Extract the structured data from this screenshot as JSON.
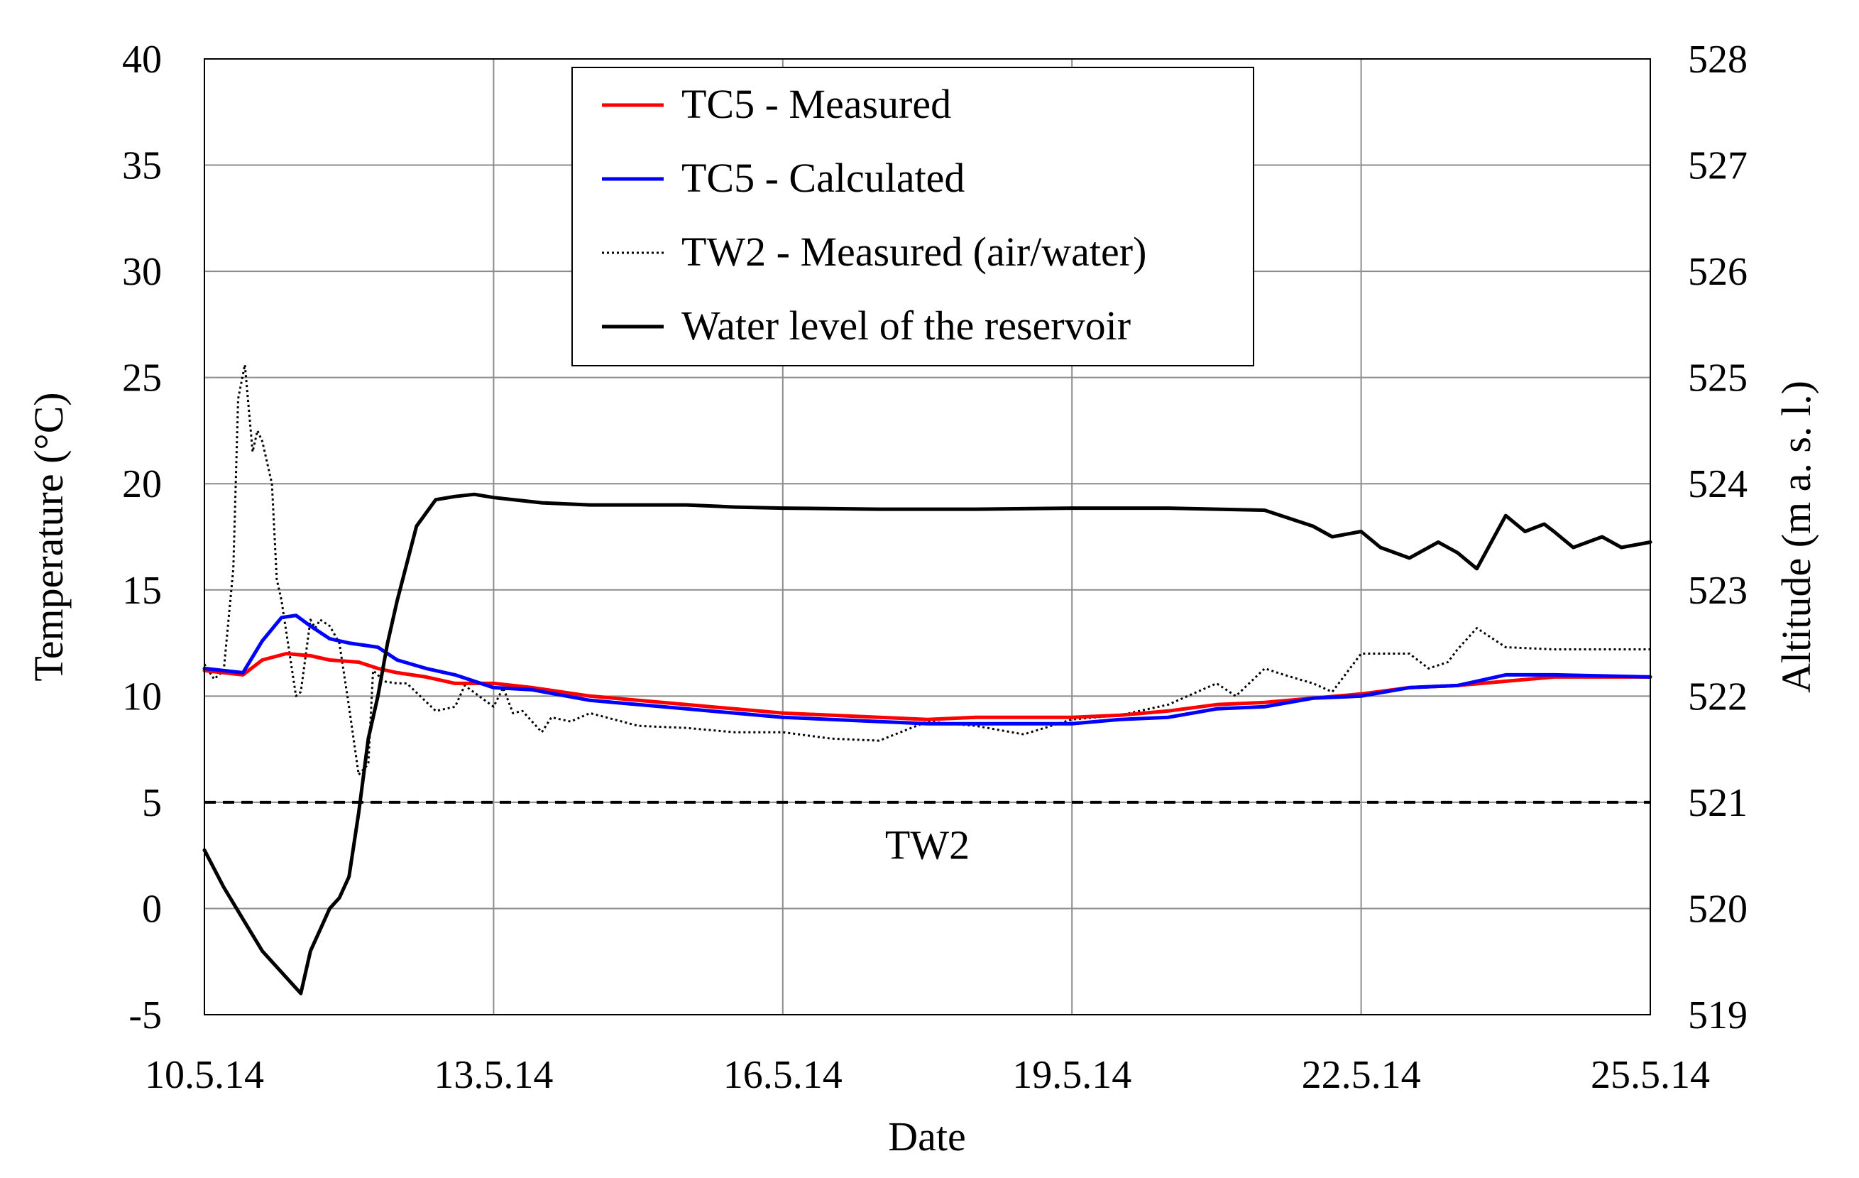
{
  "chart_data": {
    "type": "line",
    "xlabel": "Date",
    "ylabel_left": "Temperature  (°C)",
    "ylabel_right": "Altitude  (m a. s. l.)",
    "x_ticks": [
      "10.5.14",
      "13.5.14",
      "16.5.14",
      "19.5.14",
      "22.5.14",
      "25.5.14"
    ],
    "xlim_days": [
      0,
      15
    ],
    "ylim_left": [
      -5,
      40
    ],
    "y_ticks_left": [
      "-5",
      "0",
      "5",
      "10",
      "15",
      "20",
      "25",
      "30",
      "35",
      "40"
    ],
    "ylim_right": [
      519,
      528
    ],
    "y_ticks_right": [
      "519",
      "520",
      "521",
      "522",
      "523",
      "524",
      "525",
      "526",
      "527",
      "528"
    ],
    "grid": true,
    "legend_position": "top-center",
    "annotations": [
      {
        "text": "TW2",
        "x_day": 7.5,
        "y": 3
      }
    ],
    "reference_line": {
      "name": "TW2 level",
      "y": 5,
      "axis": "left",
      "style": "dashed"
    },
    "series": [
      {
        "name": "TC5 - Measured",
        "axis": "left",
        "color": "#ff0000",
        "style": "solid",
        "x": [
          0,
          0.2,
          0.4,
          0.6,
          0.85,
          1.1,
          1.3,
          1.6,
          1.8,
          2.0,
          2.3,
          2.6,
          3.0,
          3.4,
          4.0,
          4.5,
          5.0,
          5.5,
          6.0,
          7.0,
          7.5,
          8.0,
          8.5,
          9.0,
          9.5,
          10.0,
          10.5,
          11.0,
          11.5,
          12.0,
          12.5,
          13.0,
          14.0,
          15.0
        ],
        "values": [
          11.2,
          11.1,
          11.0,
          11.7,
          12.0,
          11.9,
          11.7,
          11.6,
          11.3,
          11.1,
          10.9,
          10.6,
          10.6,
          10.4,
          10.0,
          9.8,
          9.6,
          9.4,
          9.2,
          9.0,
          8.9,
          9.0,
          9.0,
          9.0,
          9.1,
          9.3,
          9.6,
          9.7,
          9.9,
          10.1,
          10.4,
          10.5,
          10.9,
          10.9
        ]
      },
      {
        "name": "TC5 - Calculated",
        "axis": "left",
        "color": "#0000ff",
        "style": "solid",
        "x": [
          0,
          0.2,
          0.4,
          0.6,
          0.8,
          0.95,
          1.1,
          1.3,
          1.5,
          1.8,
          2.0,
          2.3,
          2.6,
          3.0,
          3.4,
          4.0,
          4.5,
          5.0,
          5.5,
          6.0,
          6.5,
          7.0,
          7.5,
          8.0,
          8.5,
          9.0,
          9.5,
          10.0,
          10.5,
          11.0,
          11.5,
          12.0,
          12.5,
          13.0,
          13.5,
          14.0,
          15.0
        ],
        "values": [
          11.3,
          11.2,
          11.1,
          12.6,
          13.7,
          13.8,
          13.3,
          12.7,
          12.5,
          12.3,
          11.7,
          11.3,
          11.0,
          10.4,
          10.3,
          9.8,
          9.6,
          9.4,
          9.2,
          9.0,
          8.9,
          8.8,
          8.7,
          8.7,
          8.7,
          8.7,
          8.9,
          9.0,
          9.4,
          9.5,
          9.9,
          10.0,
          10.4,
          10.5,
          11.0,
          11.0,
          10.9
        ]
      },
      {
        "name": "TW2 - Measured (air/water)",
        "axis": "left",
        "color": "#000000",
        "style": "dotted",
        "x": [
          0,
          0.1,
          0.2,
          0.3,
          0.35,
          0.42,
          0.5,
          0.55,
          0.6,
          0.7,
          0.75,
          0.8,
          0.9,
          0.95,
          1.0,
          1.1,
          1.15,
          1.2,
          1.3,
          1.4,
          1.5,
          1.6,
          1.7,
          1.75,
          1.8,
          1.85,
          2.0,
          2.1,
          2.4,
          2.6,
          2.7,
          3.0,
          3.1,
          3.2,
          3.3,
          3.5,
          3.6,
          3.8,
          4.0,
          4.5,
          5.0,
          5.5,
          6.0,
          6.5,
          7.0,
          7.5,
          8.0,
          8.5,
          9.0,
          9.5,
          10.0,
          10.2,
          10.5,
          10.7,
          11.0,
          11.2,
          11.5,
          11.7,
          12.0,
          12.5,
          12.7,
          12.9,
          13.0,
          13.2,
          13.5,
          14.0,
          14.5,
          15.0
        ],
        "values": [
          11.5,
          10.8,
          11.2,
          16.0,
          24.0,
          25.6,
          21.5,
          22.5,
          22.0,
          20.0,
          15.5,
          14.5,
          11.5,
          10.0,
          10.2,
          13.6,
          13.2,
          13.6,
          13.3,
          12.5,
          9.5,
          6.3,
          6.8,
          11.2,
          11.0,
          10.7,
          10.6,
          10.6,
          9.3,
          9.5,
          10.5,
          9.5,
          10.4,
          9.2,
          9.3,
          8.3,
          9.0,
          8.8,
          9.2,
          8.6,
          8.5,
          8.3,
          8.3,
          8.0,
          7.9,
          8.8,
          8.6,
          8.2,
          8.9,
          9.1,
          9.6,
          10.0,
          10.6,
          10.0,
          11.3,
          11.0,
          10.6,
          10.2,
          12.0,
          12.0,
          11.3,
          11.6,
          12.2,
          13.2,
          12.3,
          12.2,
          12.2,
          12.2
        ]
      },
      {
        "name": "Water level of the reservoir",
        "axis": "right",
        "color": "#000000",
        "style": "solid",
        "x": [
          0,
          0.2,
          0.4,
          0.6,
          0.8,
          1.0,
          1.1,
          1.2,
          1.3,
          1.4,
          1.5,
          1.6,
          1.7,
          1.8,
          1.9,
          2.0,
          2.2,
          2.4,
          2.6,
          2.8,
          3.0,
          3.5,
          4.0,
          5.0,
          5.5,
          6.0,
          7.0,
          8.0,
          9.0,
          10.0,
          11.0,
          11.5,
          11.7,
          12.0,
          12.2,
          12.5,
          12.8,
          13.0,
          13.2,
          13.5,
          13.7,
          13.9,
          14.0,
          14.2,
          14.5,
          14.7,
          15.0
        ],
        "values": [
          520.55,
          520.2,
          519.9,
          519.6,
          519.4,
          519.2,
          519.6,
          519.8,
          520.0,
          520.1,
          520.3,
          520.9,
          521.6,
          522.0,
          522.5,
          522.9,
          523.6,
          523.85,
          523.88,
          523.9,
          523.87,
          523.82,
          523.8,
          523.8,
          523.78,
          523.77,
          523.76,
          523.76,
          523.77,
          523.77,
          523.75,
          523.6,
          523.5,
          523.55,
          523.4,
          523.3,
          523.45,
          523.35,
          523.2,
          523.7,
          523.55,
          523.62,
          523.55,
          523.4,
          523.5,
          523.4,
          523.45
        ]
      }
    ]
  }
}
